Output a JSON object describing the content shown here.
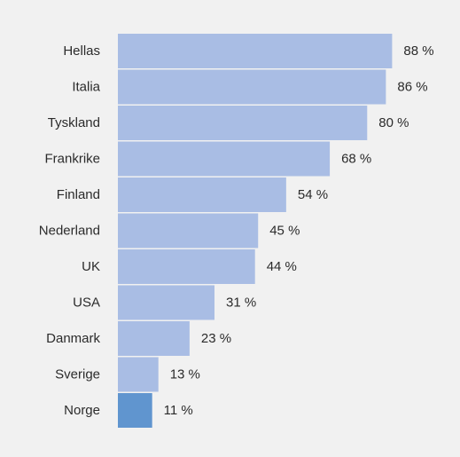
{
  "chart_data": {
    "type": "bar",
    "orientation": "horizontal",
    "categories": [
      "Hellas",
      "Italia",
      "Tyskland",
      "Frankrike",
      "Finland",
      "Nederland",
      "UK",
      "USA",
      "Danmark",
      "Sverige",
      "Norge"
    ],
    "values": [
      88,
      86,
      80,
      68,
      54,
      45,
      44,
      31,
      23,
      13,
      11
    ],
    "value_labels": [
      "88 %",
      "86 %",
      "80 %",
      "68 %",
      "54 %",
      "45 %",
      "44 %",
      "31 %",
      "23 %",
      "13 %",
      "11 %"
    ],
    "unit": "%",
    "xlim": [
      0,
      100
    ],
    "grid": false,
    "legend": "none",
    "colors": {
      "bar": "#a9bde4",
      "highlight_bar": "#6095cf",
      "background": "#f1f1f1",
      "text": "#2b2b2b"
    },
    "highlight_category": "Norge"
  }
}
